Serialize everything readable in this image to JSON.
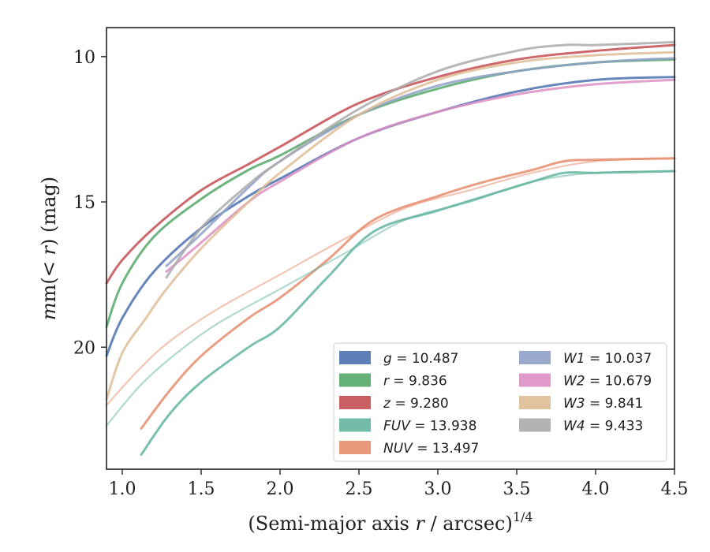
{
  "chart_data": {
    "type": "line",
    "xlabel": "(Semi-major axis r / arcsec)",
    "xlabel_italic": "r",
    "xlabel_prefix": "(Semi-major axis ",
    "xlabel_suffix": " / arcsec)",
    "xlabel_exponent": "1/4",
    "ylabel_prefix": "m(< ",
    "ylabel_var": "r",
    "ylabel_suffix": ") (mag)",
    "xlim": [
      0.9,
      4.5
    ],
    "ylim": [
      24.2,
      9.0
    ],
    "y_inverted": true,
    "xticks": [
      1.0,
      1.5,
      2.0,
      2.5,
      3.0,
      3.5,
      4.0,
      4.5
    ],
    "xtick_labels": [
      "1.0",
      "1.5",
      "2.0",
      "2.5",
      "3.0",
      "3.5",
      "4.0",
      "4.5"
    ],
    "yticks": [
      10,
      15,
      20
    ],
    "ytick_labels": [
      "10",
      "15",
      "20"
    ],
    "grid": false,
    "legend_position": "lower-right",
    "series": [
      {
        "name": "g",
        "value_label": "10.487",
        "color": "#4c72b0",
        "x": [
          0.9,
          1.0,
          1.2,
          1.5,
          1.8,
          2.0,
          2.5,
          3.0,
          3.5,
          4.0,
          4.5
        ],
        "y": [
          20.3,
          19.0,
          17.4,
          15.9,
          14.8,
          14.2,
          12.8,
          11.9,
          11.2,
          10.8,
          10.7
        ]
      },
      {
        "name": "r",
        "value_label": "9.836",
        "color": "#55a868",
        "x": [
          0.9,
          1.0,
          1.2,
          1.5,
          1.8,
          2.0,
          2.5,
          3.0,
          3.5,
          4.0,
          4.5
        ],
        "y": [
          19.3,
          17.8,
          16.2,
          14.9,
          13.9,
          13.4,
          12.0,
          11.1,
          10.5,
          10.2,
          10.1
        ]
      },
      {
        "name": "z",
        "value_label": "9.280",
        "color": "#c44e52",
        "x": [
          0.9,
          1.0,
          1.2,
          1.5,
          1.8,
          2.0,
          2.5,
          3.0,
          3.5,
          4.0,
          4.5
        ],
        "y": [
          17.8,
          17.0,
          15.9,
          14.6,
          13.7,
          13.1,
          11.6,
          10.7,
          10.1,
          9.8,
          9.6
        ]
      },
      {
        "name": "FUV",
        "value_label": "13.938",
        "color": "#64b5a0",
        "x": [
          1.12,
          1.3,
          1.5,
          1.8,
          2.0,
          2.3,
          2.6,
          3.0,
          3.3,
          3.6,
          3.8,
          4.0,
          4.5
        ],
        "y": [
          23.7,
          22.3,
          21.2,
          20.0,
          19.3,
          17.6,
          16.0,
          15.3,
          14.8,
          14.3,
          14.0,
          14.0,
          13.94
        ]
      },
      {
        "name": "NUV",
        "value_label": "13.497",
        "color": "#e58d6d",
        "x": [
          1.12,
          1.3,
          1.5,
          1.8,
          2.0,
          2.3,
          2.6,
          3.0,
          3.3,
          3.6,
          3.8,
          4.0,
          4.5
        ],
        "y": [
          22.8,
          21.5,
          20.3,
          19.0,
          18.3,
          17.0,
          15.6,
          14.8,
          14.3,
          13.9,
          13.6,
          13.55,
          13.5
        ]
      },
      {
        "name": "FUV-faint",
        "color": "#64b5a0",
        "faint": true,
        "x": [
          0.9,
          1.1,
          1.3,
          1.6,
          2.0,
          2.4,
          2.8,
          3.2,
          3.6,
          4.0,
          4.5
        ],
        "y": [
          22.7,
          21.4,
          20.4,
          19.2,
          18.0,
          16.8,
          15.6,
          15.0,
          14.3,
          14.0,
          13.94
        ]
      },
      {
        "name": "NUV-faint",
        "color": "#e58d6d",
        "faint": true,
        "x": [
          0.9,
          1.1,
          1.3,
          1.6,
          2.0,
          2.4,
          2.8,
          3.2,
          3.6,
          4.0,
          4.5
        ],
        "y": [
          22.0,
          20.8,
          19.8,
          18.7,
          17.5,
          16.3,
          15.2,
          14.6,
          14.0,
          13.6,
          13.5
        ]
      },
      {
        "name": "W1",
        "value_label": "10.037",
        "color": "#8fa1c7",
        "x": [
          1.28,
          1.5,
          1.8,
          2.0,
          2.5,
          3.0,
          3.5,
          4.0,
          4.5
        ],
        "y": [
          17.2,
          16.1,
          14.5,
          13.6,
          12.0,
          11.0,
          10.5,
          10.2,
          10.05
        ]
      },
      {
        "name": "W2",
        "value_label": "10.679",
        "color": "#dd8fc3",
        "x": [
          1.28,
          1.5,
          1.8,
          2.0,
          2.5,
          3.0,
          3.5,
          4.0,
          4.5
        ],
        "y": [
          17.4,
          16.4,
          15.0,
          14.3,
          12.8,
          11.9,
          11.3,
          10.95,
          10.8
        ]
      },
      {
        "name": "W3",
        "value_label": "9.841",
        "color": "#dfbd96",
        "x": [
          0.9,
          1.0,
          1.15,
          1.28,
          1.5,
          1.8,
          2.0,
          2.5,
          3.0,
          3.5,
          4.0,
          4.5
        ],
        "y": [
          21.8,
          20.2,
          19.0,
          18.0,
          16.6,
          15.0,
          14.0,
          12.0,
          10.8,
          10.2,
          9.95,
          9.85
        ]
      },
      {
        "name": "W4",
        "value_label": "9.433",
        "color": "#ababab",
        "x": [
          1.28,
          1.5,
          1.8,
          2.0,
          2.5,
          3.0,
          3.5,
          3.8,
          4.0,
          4.5
        ],
        "y": [
          17.6,
          15.9,
          14.4,
          13.6,
          11.8,
          10.5,
          9.8,
          9.6,
          9.6,
          9.5
        ]
      }
    ],
    "legend": [
      {
        "label": "g = 10.487",
        "var": "g",
        "value": "10.487",
        "color": "#4c72b0"
      },
      {
        "label": "r = 9.836",
        "var": "r",
        "value": "9.836",
        "color": "#55a868"
      },
      {
        "label": "z = 9.280",
        "var": "z",
        "value": "9.280",
        "color": "#c44e52"
      },
      {
        "label": "FUV = 13.938",
        "var": "FUV",
        "value": "13.938",
        "color": "#64b5a0"
      },
      {
        "label": "NUV = 13.497",
        "var": "NUV",
        "value": "13.497",
        "color": "#e58d6d"
      },
      {
        "label": "W1 = 10.037",
        "var": "W1",
        "value": "10.037",
        "color": "#8fa1c7"
      },
      {
        "label": "W2 = 10.679",
        "var": "W2",
        "value": "10.679",
        "color": "#dd8fc3"
      },
      {
        "label": "W3 = 9.841",
        "var": "W3",
        "value": "9.841",
        "color": "#dfbd96"
      },
      {
        "label": "W4 = 9.433",
        "var": "W4",
        "value": "9.433",
        "color": "#ababab"
      }
    ]
  }
}
